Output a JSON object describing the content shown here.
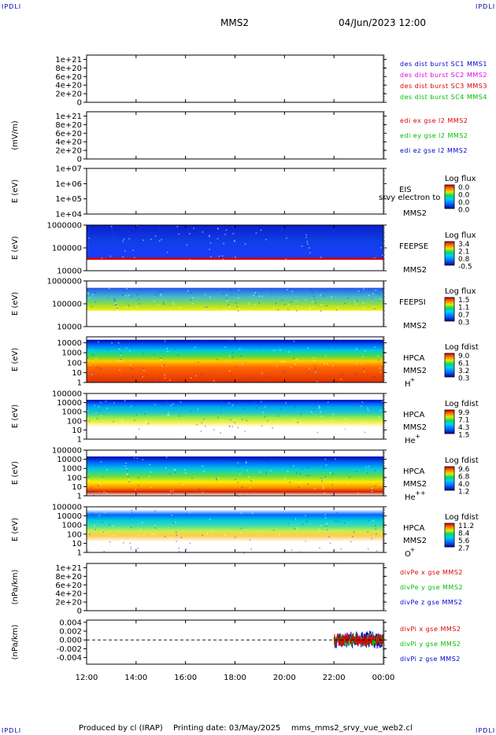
{
  "header": {
    "corner_label": "IPDLI",
    "spacecraft": "MMS2",
    "datetime": "04/Jun/2023 12:00"
  },
  "footer": {
    "produced_by": "Produced by cl (IRAP)",
    "printing_date": "Printing date: 03/May/2025",
    "script_name": "mms_mms2_srvy_vue_web2.cl"
  },
  "time_axis": {
    "ticks": [
      "12:00",
      "14:00",
      "16:00",
      "18:00",
      "20:00",
      "22:00",
      "00:00"
    ],
    "hours": [
      12,
      14,
      16,
      18,
      20,
      22,
      24
    ]
  },
  "chart_data": [
    {
      "id": "des-dist-burst",
      "type": "line",
      "ylabel": "",
      "yticks": [
        "1e+21",
        "8e+20",
        "6e+20",
        "4e+20",
        "2e+20",
        "0"
      ],
      "ylim": [
        0,
        1.1e+21
      ],
      "zero_line": true,
      "series": [
        {
          "name": "des dist burst SC1 MMS1",
          "color": "#0000cc",
          "values": []
        },
        {
          "name": "des dist burst SC2 MMS2",
          "color": "#dd00dd",
          "values": []
        },
        {
          "name": "des dist burst SC3 MMS3",
          "color": "#dd0000",
          "values": []
        },
        {
          "name": "des dist burst SC4 MMS4",
          "color": "#00bb00",
          "values": []
        }
      ]
    },
    {
      "id": "edi-e-gse",
      "type": "line",
      "ylabel": "(mV/m)",
      "yticks": [
        "1e+21",
        "8e+20",
        "6e+20",
        "4e+20",
        "2e+20",
        "0"
      ],
      "ylim": [
        0,
        1.1e+21
      ],
      "zero_line": true,
      "series": [
        {
          "name": "edi ex gse l2 MMS2",
          "color": "#dd0000",
          "values": []
        },
        {
          "name": "edi ey gse l2 MMS2",
          "color": "#00bb00",
          "values": []
        },
        {
          "name": "edi ez gse l2 MMS2",
          "color": "#0000cc",
          "values": []
        }
      ]
    },
    {
      "id": "eis",
      "type": "heatmap",
      "ylabel": "E (eV)",
      "yticks": [
        "1e+07",
        "1e+06",
        "1e+05",
        "1e+04"
      ],
      "log_y": true,
      "ylim": [
        10000,
        10000000
      ],
      "instrument": "EIS",
      "instrument_sub": "MMS2",
      "overlay_text": "srvy electron to",
      "cbar_title": "Log flux",
      "cbar_ticks": [
        "0.0",
        "0.0",
        "0.0",
        "0.0"
      ],
      "band": null
    },
    {
      "id": "feeps-e",
      "type": "heatmap",
      "ylabel": "E (eV)",
      "yticks": [
        "1000000",
        "100000",
        "10000"
      ],
      "log_y": true,
      "ylim": [
        10000,
        1000000
      ],
      "instrument": "FEEPSE",
      "instrument_sub": "MMS2",
      "cbar_title": "Log flux",
      "cbar_ticks": [
        "3.4",
        "2.1",
        "0.8",
        "-0.5"
      ],
      "band": {
        "from": 30000,
        "to": 1000000,
        "style": "feeps-e",
        "start": 12,
        "end": 24
      }
    },
    {
      "id": "feeps-i",
      "type": "heatmap",
      "ylabel": "E (eV)",
      "yticks": [
        "1000000",
        "100000",
        "10000"
      ],
      "log_y": true,
      "ylim": [
        10000,
        1000000
      ],
      "instrument": "FEEPSI",
      "instrument_sub": "MMS2",
      "cbar_title": "Log flux",
      "cbar_ticks": [
        "1.5",
        "1.1",
        "0.7",
        "0.3"
      ],
      "band": {
        "from": 50000,
        "to": 500000,
        "style": "feeps-i",
        "start": 12,
        "end": 24
      }
    },
    {
      "id": "hpca-h",
      "type": "heatmap",
      "ylabel": "E (eV)",
      "yticks": [
        "10000",
        "1000",
        "100",
        "10",
        "1"
      ],
      "log_y": true,
      "ylim": [
        1,
        40000
      ],
      "instrument": "HPCA",
      "instrument_sub": "MMS2",
      "species": "H",
      "species_charge": "+",
      "cbar_title": "Log fdist",
      "cbar_ticks": [
        "9.0",
        "6.1",
        "3.2",
        "0.3"
      ],
      "band": {
        "from": 1,
        "to": 20000,
        "style": "hpca-h",
        "start": 12,
        "end": 24
      }
    },
    {
      "id": "hpca-he",
      "type": "heatmap",
      "ylabel": "E (eV)",
      "yticks": [
        "100000",
        "10000",
        "1000",
        "100",
        "10",
        "1"
      ],
      "log_y": true,
      "ylim": [
        1,
        100000
      ],
      "instrument": "HPCA",
      "instrument_sub": "MMS2",
      "species": "He",
      "species_charge": "+",
      "cbar_title": "Log fdist",
      "cbar_ticks": [
        "9.9",
        "7.1",
        "4.3",
        "1.5"
      ],
      "band": {
        "from": 5,
        "to": 20000,
        "style": "hpca-he",
        "start": 12,
        "end": 24
      }
    },
    {
      "id": "hpca-hepp",
      "type": "heatmap",
      "ylabel": "E (eV)",
      "yticks": [
        "100000",
        "10000",
        "1000",
        "100",
        "10",
        "1"
      ],
      "log_y": true,
      "ylim": [
        1,
        100000
      ],
      "instrument": "HPCA",
      "instrument_sub": "MMS2",
      "species": "He",
      "species_charge": "++",
      "cbar_title": "Log fdist",
      "cbar_ticks": [
        "9.6",
        "6.8",
        "4.0",
        "1.2"
      ],
      "band": {
        "from": 1,
        "to": 20000,
        "style": "hpca-hepp",
        "start": 12,
        "end": 24
      }
    },
    {
      "id": "hpca-o",
      "type": "heatmap",
      "ylabel": "E (eV)",
      "yticks": [
        "100000",
        "10000",
        "1000",
        "100",
        "10",
        "1"
      ],
      "log_y": true,
      "ylim": [
        1,
        100000
      ],
      "instrument": "HPCA",
      "instrument_sub": "MMS2",
      "species": "O",
      "species_charge": "+",
      "cbar_title": "Log fdist",
      "cbar_ticks": [
        "11.2",
        "8.4",
        "5.6",
        "2.7"
      ],
      "band": {
        "from": 1,
        "to": 50000,
        "style": "hpca-o",
        "start": 12,
        "end": 24
      }
    },
    {
      "id": "divpe",
      "type": "line",
      "ylabel": "(nPa/km)",
      "yticks": [
        "1e+21",
        "8e+20",
        "6e+20",
        "4e+20",
        "2e+20",
        "0"
      ],
      "ylim": [
        0,
        1.1e+21
      ],
      "zero_line": true,
      "series": [
        {
          "name": "divPe x gse MMS2",
          "color": "#dd0000",
          "values": []
        },
        {
          "name": "divPe y gse MMS2",
          "color": "#00bb00",
          "values": []
        },
        {
          "name": "divPe z gse MMS2",
          "color": "#0000cc",
          "values": []
        }
      ]
    },
    {
      "id": "divpi",
      "type": "line",
      "ylabel": "(nPa/km)",
      "yticks": [
        "0.004",
        "0.002",
        "0.000",
        "-0.002",
        "-0.004"
      ],
      "ylim": [
        -0.0055,
        0.0045
      ],
      "zero_line": true,
      "noise": {
        "start": 22.0,
        "end": 24.0,
        "amplitude": 0.002
      },
      "series": [
        {
          "name": "divPi x gse MMS2",
          "color": "#dd0000"
        },
        {
          "name": "divPi y gse MMS2",
          "color": "#00bb00"
        },
        {
          "name": "divPi z gse MMS2",
          "color": "#0000cc"
        }
      ]
    }
  ]
}
